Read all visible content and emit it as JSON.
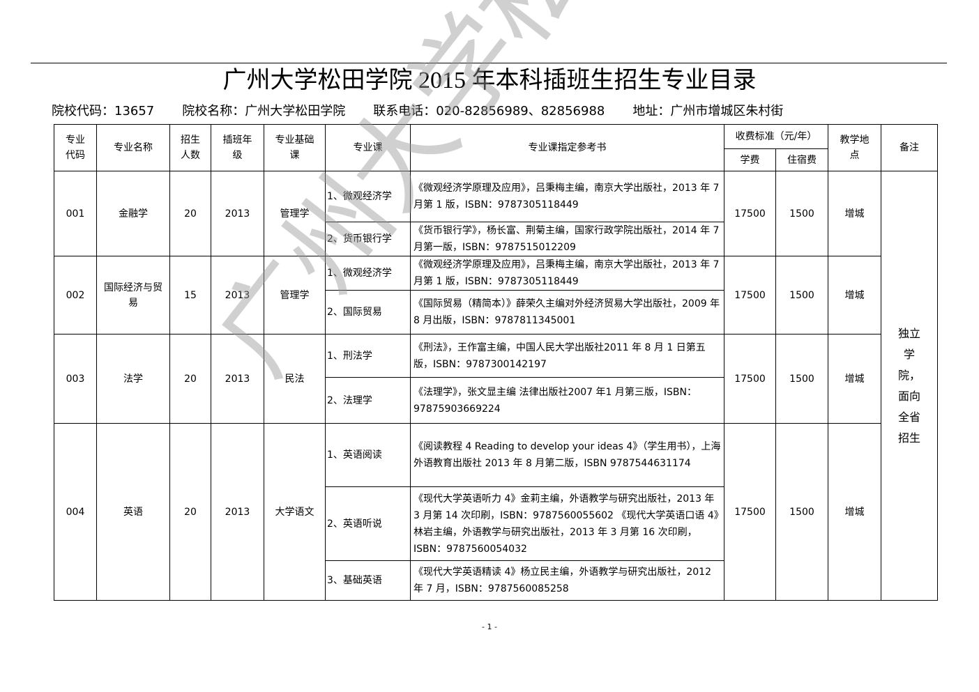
{
  "title": "广州大学松田学院 2015 年本科插班生招生专业目录",
  "info": {
    "code": "院校代码：13657",
    "name": "院校名称：广州大学松田学院",
    "phone": "联系电话：020-82856989、82856988",
    "address": "地址：广州市增城区朱村街"
  },
  "headers": {
    "code": "专业代码",
    "name": "专业名称",
    "count": "招生人数",
    "grade": "插班年级",
    "base": "专业基础课",
    "course": "专业课",
    "books": "专业课指定参考书",
    "fee": "收费标准（元/年）",
    "tuition": "学费",
    "lodging": "住宿费",
    "site": "教学地点",
    "note": "备注"
  },
  "rows": [
    {
      "code": "001",
      "name": "金融学",
      "count": "20",
      "grade": "2013",
      "base": "管理学",
      "tuition": "17500",
      "lodging": "1500",
      "site": "增城",
      "courses": [
        {
          "course": "1、微观经济学",
          "books": "《微观经济学原理及应用》，吕秉梅主编，南京大学出版社，2013 年 7 月第 1 版，ISBN：9787305118449"
        },
        {
          "course": "2、货币银行学",
          "books": "《货币银行学》，杨长富、荆菊主编，国家行政学院出版社，2014 年 7 月第一版，ISBN：9787515012209"
        }
      ]
    },
    {
      "code": "002",
      "name": "国际经济与贸易",
      "count": "15",
      "grade": "2013",
      "base": "管理学",
      "tuition": "17500",
      "lodging": "1500",
      "site": "增城",
      "courses": [
        {
          "course": "1、微观经济学",
          "books": "《微观经济学原理及应用》，吕秉梅主编，南京大学出版社，2013 年 7 月第 1 版，ISBN：9787305118449"
        },
        {
          "course": "2、国际贸易",
          "books": "《国际贸易（精简本）》薛荣久主编对外经济贸易大学出版社，2009 年 8 月出版，ISBN：9787811345001"
        }
      ]
    },
    {
      "code": "003",
      "name": "法学",
      "count": "20",
      "grade": "2013",
      "base": "民法",
      "tuition": "17500",
      "lodging": "1500",
      "site": "增城",
      "courses": [
        {
          "course": "1、刑法学",
          "books": "《刑法》，王作富主编，中国人民大学出版社2011 年 8 月 1 日第五版，ISBN：9787300142197"
        },
        {
          "course": "2、法理学",
          "books": "《法理学》，张文显主编 法律出版社2007 年1 月第三版，ISBN：97875903669224"
        }
      ]
    },
    {
      "code": "004",
      "name": "英语",
      "count": "20",
      "grade": "2013",
      "base": "大学语文",
      "tuition": "17500",
      "lodging": "1500",
      "site": "增城",
      "courses": [
        {
          "course": "1、英语阅读",
          "books": "《阅读教程 4 Reading to develop your ideas 4》（学生用书），上海外语教育出版社 2013 年 8 月第二版，ISBN 9787544631174"
        },
        {
          "course": "2、英语听说",
          "books": "《现代大学英语听力 4》金莉主编，外语教学与研究出版社，2013 年 3 月第 14 次印刷，ISBN：9787560055602 《现代大学英语口语 4》林岩主编，外语教学与研究出版社，2013 年 3 月第 16 次印刷，ISBN：9787560054032"
        },
        {
          "course": "3、基础英语",
          "books": "《现代大学英语精读 4》杨立民主编，外语教学与研究出版社，2012 年 7 月，ISBN：9787560085258"
        }
      ]
    }
  ],
  "note": "独立学院，面向全省招生",
  "watermark": "广州大学松田学院",
  "page_number": "- 1 -"
}
